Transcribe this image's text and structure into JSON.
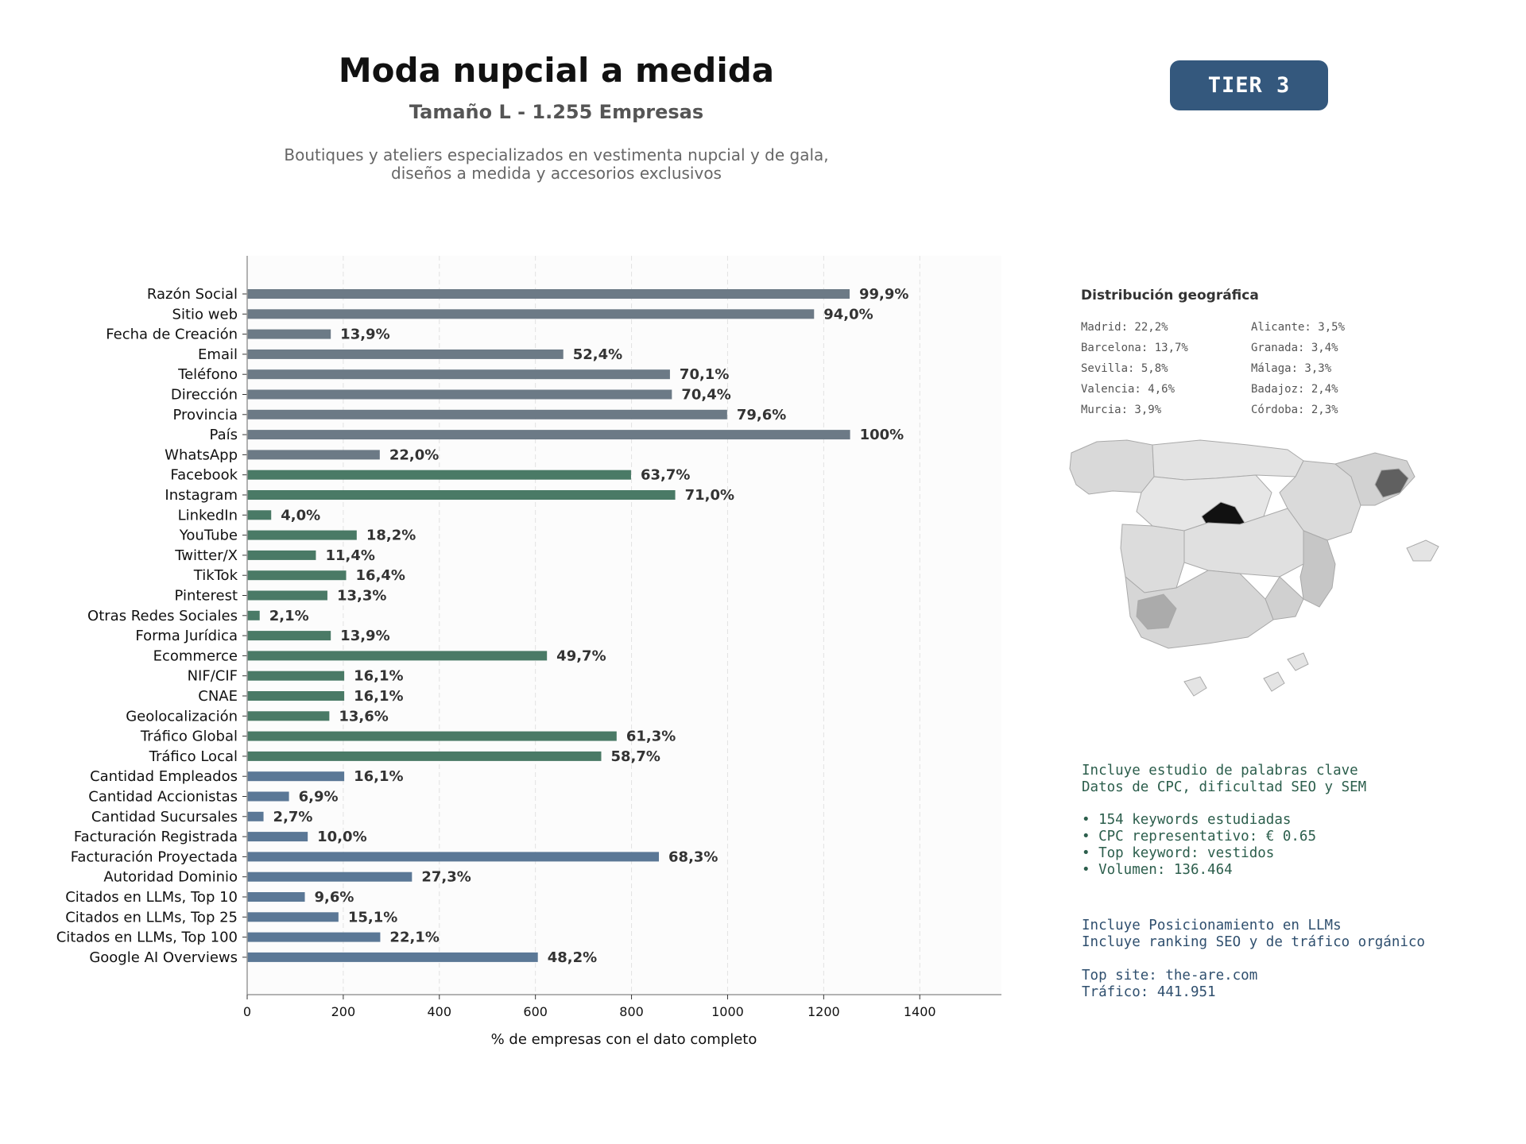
{
  "header": {
    "title": "Moda nupcial a medida",
    "subtitle": "Tamaño L - 1.255 Empresas",
    "description_line1": "Boutiques y ateliers especializados en vestimenta nupcial y de gala,",
    "description_line2": "diseños a medida y accesorios exclusivos",
    "tier": "TIER 3"
  },
  "chart_data": {
    "type": "bar",
    "orientation": "horizontal",
    "xlabel": "% de empresas con el dato completo",
    "xlim": [
      0,
      1570
    ],
    "xticks": [
      0,
      200,
      400,
      600,
      800,
      1000,
      1200,
      1400
    ],
    "grid": "vertical dashed",
    "colors": {
      "gray": "#6c7a86",
      "green": "#4a7a66",
      "blue": "#5b7896"
    },
    "bars": [
      {
        "category": "Razón Social",
        "value": 1254,
        "label": "99,9%",
        "group": "gray"
      },
      {
        "category": "Sitio web",
        "value": 1180,
        "label": "94,0%",
        "group": "gray"
      },
      {
        "category": "Fecha de Creación",
        "value": 174,
        "label": "13,9%",
        "group": "gray"
      },
      {
        "category": "Email",
        "value": 658,
        "label": "52,4%",
        "group": "gray"
      },
      {
        "category": "Teléfono",
        "value": 880,
        "label": "70,1%",
        "group": "gray"
      },
      {
        "category": "Dirección",
        "value": 884,
        "label": "70,4%",
        "group": "gray"
      },
      {
        "category": "Provincia",
        "value": 999,
        "label": "79,6%",
        "group": "gray"
      },
      {
        "category": "País",
        "value": 1255,
        "label": "100%",
        "group": "gray"
      },
      {
        "category": "WhatsApp",
        "value": 276,
        "label": "22,0%",
        "group": "gray"
      },
      {
        "category": "Facebook",
        "value": 799,
        "label": "63,7%",
        "group": "green"
      },
      {
        "category": "Instagram",
        "value": 891,
        "label": "71,0%",
        "group": "green"
      },
      {
        "category": "LinkedIn",
        "value": 50,
        "label": "4,0%",
        "group": "green"
      },
      {
        "category": "YouTube",
        "value": 228,
        "label": "18,2%",
        "group": "green"
      },
      {
        "category": "Twitter/X",
        "value": 143,
        "label": "11,4%",
        "group": "green"
      },
      {
        "category": "TikTok",
        "value": 206,
        "label": "16,4%",
        "group": "green"
      },
      {
        "category": "Pinterest",
        "value": 167,
        "label": "13,3%",
        "group": "green"
      },
      {
        "category": "Otras Redes Sociales",
        "value": 26,
        "label": "2,1%",
        "group": "green"
      },
      {
        "category": "Forma Jurídica",
        "value": 174,
        "label": "13,9%",
        "group": "green"
      },
      {
        "category": "Ecommerce",
        "value": 624,
        "label": "49,7%",
        "group": "green"
      },
      {
        "category": "NIF/CIF",
        "value": 202,
        "label": "16,1%",
        "group": "green"
      },
      {
        "category": "CNAE",
        "value": 202,
        "label": "16,1%",
        "group": "green"
      },
      {
        "category": "Geolocalización",
        "value": 171,
        "label": "13,6%",
        "group": "green"
      },
      {
        "category": "Tráfico Global",
        "value": 769,
        "label": "61,3%",
        "group": "green"
      },
      {
        "category": "Tráfico Local",
        "value": 737,
        "label": "58,7%",
        "group": "green"
      },
      {
        "category": "Cantidad Empleados",
        "value": 202,
        "label": "16,1%",
        "group": "blue"
      },
      {
        "category": "Cantidad Accionistas",
        "value": 87,
        "label": "6,9%",
        "group": "blue"
      },
      {
        "category": "Cantidad Sucursales",
        "value": 34,
        "label": "2,7%",
        "group": "blue"
      },
      {
        "category": "Facturación Registrada",
        "value": 126,
        "label": "10,0%",
        "group": "blue"
      },
      {
        "category": "Facturación Proyectada",
        "value": 857,
        "label": "68,3%",
        "group": "blue"
      },
      {
        "category": "Autoridad Dominio",
        "value": 343,
        "label": "27,3%",
        "group": "blue"
      },
      {
        "category": "Citados en LLMs, Top 10",
        "value": 120,
        "label": "9,6%",
        "group": "blue"
      },
      {
        "category": "Citados en LLMs, Top 25",
        "value": 190,
        "label": "15,1%",
        "group": "blue"
      },
      {
        "category": "Citados en LLMs, Top 100",
        "value": 277,
        "label": "22,1%",
        "group": "blue"
      },
      {
        "category": "Google AI Overviews",
        "value": 605,
        "label": "48,2%",
        "group": "blue"
      }
    ]
  },
  "geo": {
    "title": "Distribución geográfica",
    "col1": [
      "Madrid: 22,2%",
      "Barcelona: 13,7%",
      "Sevilla: 5,8%",
      "Valencia: 4,6%",
      "Murcia: 3,9%"
    ],
    "col2": [
      "Alicante: 3,5%",
      "Granada: 3,4%",
      "Málaga: 3,3%",
      "Badajoz: 2,4%",
      "Córdoba: 2,3%"
    ]
  },
  "keywords": {
    "line1": "Incluye estudio de palabras clave",
    "line2": "Datos de CPC, dificultad SEO y SEM",
    "bullets": [
      "• 154 keywords estudiadas",
      "• CPC representativo: € 0.65",
      "• Top keyword: vestidos",
      "• Volumen: 136.464"
    ]
  },
  "llm": {
    "line1": "Incluye Posicionamiento en LLMs",
    "line2": "Incluye ranking SEO y de tráfico orgánico"
  },
  "site": {
    "top_site": "Top site: the-are.com",
    "traffic": "Tráfico: 441.951"
  }
}
